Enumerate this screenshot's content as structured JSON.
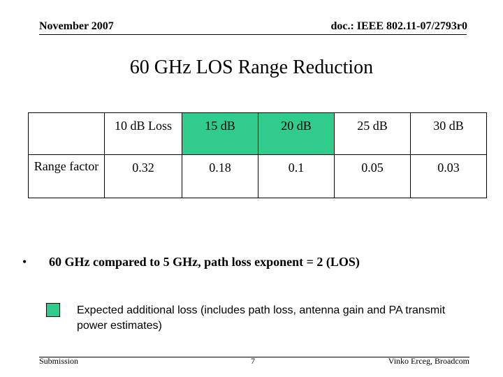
{
  "header": {
    "date": "November 2007",
    "doc_id": "doc.: IEEE 802.11-07/2793r0"
  },
  "title": "60 GHz LOS Range Reduction",
  "table": {
    "row_label": "Range factor",
    "columns": [
      "10 dB Loss",
      "15 dB",
      "20 dB",
      "25 dB",
      "30 dB"
    ],
    "values": [
      "0.32",
      "0.18",
      "0.1",
      "0.05",
      "0.03"
    ],
    "highlighted_columns": [
      "15 dB",
      "20 dB"
    ],
    "highlight_color": "#2fcc8e"
  },
  "bullet": {
    "marker": "•",
    "text": "60 GHz compared to 5 GHz, path loss exponent = 2 (LOS)"
  },
  "legend": {
    "text": "Expected additional loss (includes path loss, antenna gain and PA transmit power estimates)",
    "color": "#2fcc8e"
  },
  "footer": {
    "left": "Submission",
    "page": "7",
    "right": "Vinko Erceg, Broadcom"
  }
}
